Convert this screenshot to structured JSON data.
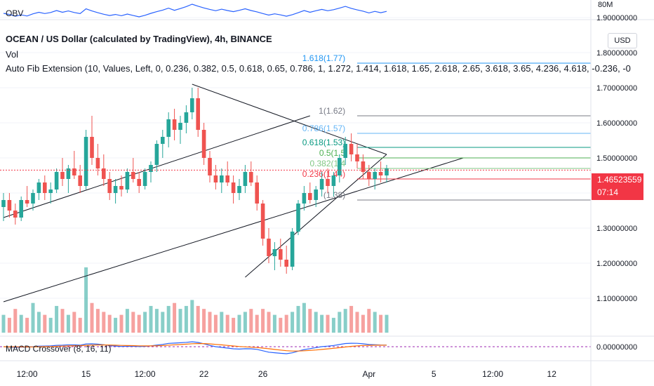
{
  "legend": {
    "obv": "OBV",
    "title": "OCEAN / US Dollar (calculated by TradingView), 4h, BINANCE",
    "vol": "Vol",
    "fib": "Auto Fib Extension (10, Values, Left, 0, 0.236, 0.382, 0.5, 0.618, 0.65, 0.786, 1, 1.272, 1.414, 1.618, 1.65, 2.618, 2.65, 3.618, 3.65, 4.236, 4.618, -0.236, -0",
    "macd": "MACD Crossover (8, 16, 11)"
  },
  "currency": "USD",
  "price_tag": {
    "price": "1.46523559",
    "countdown": "07:14"
  },
  "colors": {
    "up": "#26a69a",
    "down": "#ef5350",
    "tag": "#f23645",
    "obv": "#2962ff",
    "signal": "#ff6d00"
  },
  "chart_data": {
    "type": "candlestick",
    "y_axis": {
      "ylim": [
        1.02,
        1.95
      ],
      "ticks": [
        1.9,
        1.8,
        1.7,
        1.6,
        1.5,
        1.4,
        1.3,
        1.2,
        1.1
      ],
      "tick_labels": [
        "1.90000000",
        "1.80000000",
        "1.70000000",
        "1.60000000",
        "1.50000000",
        "1.40000000",
        "1.30000000",
        "1.20000000",
        "1.10000000"
      ]
    },
    "obv_axis_label": "80M",
    "macd_axis_label": "0.00000000",
    "x_axis": {
      "tick_labels": [
        "12:00",
        "15",
        "12:00",
        "22",
        "26",
        "Apr",
        "5",
        "12:00",
        "12"
      ],
      "tick_bars": [
        4,
        14,
        24,
        34,
        44,
        62,
        73,
        83,
        93
      ]
    },
    "candles": [
      [
        1.36,
        1.4,
        1.32,
        1.38
      ],
      [
        1.38,
        1.4,
        1.33,
        1.35
      ],
      [
        1.35,
        1.37,
        1.31,
        1.33
      ],
      [
        1.33,
        1.39,
        1.32,
        1.38
      ],
      [
        1.38,
        1.42,
        1.36,
        1.37
      ],
      [
        1.37,
        1.41,
        1.35,
        1.4
      ],
      [
        1.4,
        1.44,
        1.38,
        1.43
      ],
      [
        1.43,
        1.45,
        1.38,
        1.4
      ],
      [
        1.4,
        1.43,
        1.37,
        1.41
      ],
      [
        1.41,
        1.47,
        1.4,
        1.46
      ],
      [
        1.46,
        1.5,
        1.42,
        1.44
      ],
      [
        1.44,
        1.48,
        1.4,
        1.47
      ],
      [
        1.47,
        1.52,
        1.44,
        1.45
      ],
      [
        1.45,
        1.48,
        1.4,
        1.42
      ],
      [
        1.42,
        1.58,
        1.41,
        1.56
      ],
      [
        1.56,
        1.62,
        1.48,
        1.5
      ],
      [
        1.5,
        1.54,
        1.45,
        1.47
      ],
      [
        1.47,
        1.51,
        1.42,
        1.44
      ],
      [
        1.44,
        1.46,
        1.38,
        1.4
      ],
      [
        1.4,
        1.44,
        1.37,
        1.42
      ],
      [
        1.42,
        1.45,
        1.39,
        1.41
      ],
      [
        1.41,
        1.47,
        1.4,
        1.46
      ],
      [
        1.46,
        1.5,
        1.43,
        1.44
      ],
      [
        1.44,
        1.46,
        1.4,
        1.42
      ],
      [
        1.42,
        1.47,
        1.41,
        1.46
      ],
      [
        1.46,
        1.49,
        1.43,
        1.48
      ],
      [
        1.48,
        1.55,
        1.46,
        1.54
      ],
      [
        1.54,
        1.58,
        1.5,
        1.56
      ],
      [
        1.56,
        1.63,
        1.53,
        1.61
      ],
      [
        1.61,
        1.64,
        1.55,
        1.58
      ],
      [
        1.58,
        1.62,
        1.54,
        1.6
      ],
      [
        1.6,
        1.65,
        1.57,
        1.63
      ],
      [
        1.63,
        1.7,
        1.61,
        1.67
      ],
      [
        1.67,
        1.7,
        1.56,
        1.58
      ],
      [
        1.58,
        1.6,
        1.48,
        1.5
      ],
      [
        1.5,
        1.52,
        1.43,
        1.45
      ],
      [
        1.45,
        1.48,
        1.41,
        1.43
      ],
      [
        1.43,
        1.47,
        1.4,
        1.45
      ],
      [
        1.45,
        1.49,
        1.42,
        1.43
      ],
      [
        1.43,
        1.45,
        1.37,
        1.4
      ],
      [
        1.4,
        1.44,
        1.38,
        1.42
      ],
      [
        1.42,
        1.48,
        1.4,
        1.46
      ],
      [
        1.46,
        1.49,
        1.42,
        1.43
      ],
      [
        1.43,
        1.45,
        1.35,
        1.37
      ],
      [
        1.37,
        1.38,
        1.25,
        1.27
      ],
      [
        1.27,
        1.3,
        1.2,
        1.22
      ],
      [
        1.22,
        1.26,
        1.18,
        1.24
      ],
      [
        1.24,
        1.27,
        1.19,
        1.21
      ],
      [
        1.21,
        1.25,
        1.17,
        1.19
      ],
      [
        1.19,
        1.3,
        1.18,
        1.29
      ],
      [
        1.29,
        1.38,
        1.28,
        1.37
      ],
      [
        1.37,
        1.42,
        1.35,
        1.4
      ],
      [
        1.4,
        1.43,
        1.37,
        1.38
      ],
      [
        1.38,
        1.42,
        1.36,
        1.41
      ],
      [
        1.41,
        1.46,
        1.39,
        1.44
      ],
      [
        1.44,
        1.47,
        1.4,
        1.42
      ],
      [
        1.42,
        1.46,
        1.39,
        1.45
      ],
      [
        1.45,
        1.51,
        1.43,
        1.5
      ],
      [
        1.5,
        1.56,
        1.48,
        1.54
      ],
      [
        1.54,
        1.57,
        1.49,
        1.51
      ],
      [
        1.51,
        1.54,
        1.47,
        1.49
      ],
      [
        1.49,
        1.51,
        1.44,
        1.46
      ],
      [
        1.46,
        1.48,
        1.42,
        1.44
      ],
      [
        1.44,
        1.47,
        1.41,
        1.46
      ],
      [
        1.46,
        1.49,
        1.43,
        1.45
      ],
      [
        1.45,
        1.48,
        1.43,
        1.47
      ]
    ],
    "volume": [
      6,
      5,
      8,
      6,
      5,
      10,
      7,
      6,
      5,
      9,
      8,
      6,
      7,
      5,
      22,
      10,
      8,
      7,
      6,
      5,
      6,
      8,
      7,
      6,
      7,
      9,
      8,
      7,
      9,
      10,
      8,
      9,
      11,
      9,
      8,
      7,
      6,
      7,
      6,
      5,
      6,
      7,
      8,
      6,
      8,
      7,
      6,
      5,
      6,
      7,
      9,
      10,
      8,
      7,
      6,
      6,
      5,
      7,
      8,
      9,
      7,
      6,
      8,
      7,
      6,
      6
    ],
    "volume_ylim": [
      0,
      26
    ],
    "trendlines": [
      {
        "from": [
          0,
          1.33
        ],
        "to": [
          52,
          1.62
        ]
      },
      {
        "from": [
          0,
          1.09
        ],
        "to": [
          78,
          1.5
        ]
      },
      {
        "from": [
          32,
          1.71
        ],
        "to": [
          65,
          1.51
        ]
      },
      {
        "from": [
          41,
          1.16
        ],
        "to": [
          65,
          1.51
        ]
      }
    ],
    "fib_levels": [
      {
        "ratio": "1",
        "label": "1(1.62)",
        "value": 1.62,
        "color": "#787b86"
      },
      {
        "ratio": "0.786",
        "label": "0.786(1.57)",
        "value": 1.57,
        "color": "#64b5f6"
      },
      {
        "ratio": "0.618",
        "label": "0.618(1.53)",
        "value": 1.53,
        "color": "#089981"
      },
      {
        "ratio": "0.5",
        "label": "0.5(1.5",
        "value": 1.5,
        "color": "#4caf50"
      },
      {
        "ratio": "0.382",
        "label": "0.382(1.4",
        "value": 1.47,
        "color": "#81c784"
      },
      {
        "ratio": "0.236",
        "label": "0.236(1.44)",
        "value": 1.44,
        "color": "#f23645"
      },
      {
        "ratio": "0",
        "label": "(1.38)",
        "value": 1.38,
        "color": "#787b86"
      }
    ],
    "fib_top_label": "1.618(1.77)",
    "fib_top_value": 1.77,
    "current_price": 1.46523559
  }
}
